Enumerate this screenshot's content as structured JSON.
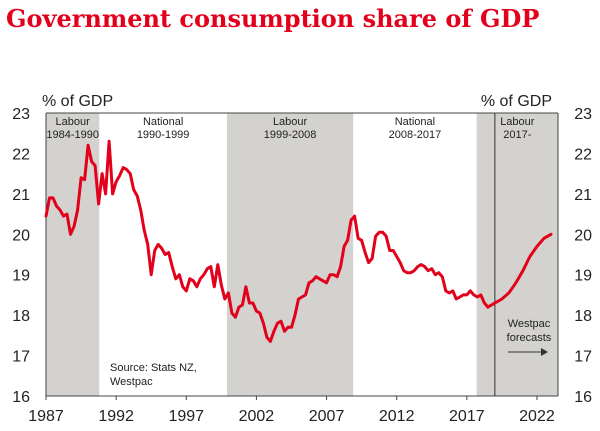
{
  "title": "Government consumption share of GDP",
  "chart_data": {
    "type": "line",
    "y_unit_left": "% of GDP",
    "y_unit_right": "% of GDP",
    "ylim": [
      16,
      23
    ],
    "y_ticks": [
      "16",
      "17",
      "18",
      "19",
      "20",
      "21",
      "22",
      "23"
    ],
    "xlim": [
      1987,
      2023.5
    ],
    "x_ticks": [
      "1987",
      "1992",
      "1997",
      "2002",
      "2007",
      "2012",
      "2017",
      "2022"
    ],
    "grid": false,
    "line_color": "#e3001b",
    "band_color": "#d4d2cf",
    "government_periods": [
      {
        "party": "Labour",
        "years": "1984-1990",
        "start": 1987.0,
        "end": 1990.8,
        "shaded": true
      },
      {
        "party": "National",
        "years": "1990-1999",
        "start": 1990.8,
        "end": 1999.9,
        "shaded": false
      },
      {
        "party": "Labour",
        "years": "1999-2008",
        "start": 1999.9,
        "end": 2008.9,
        "shaded": true
      },
      {
        "party": "National",
        "years": "2008-2017",
        "start": 2008.9,
        "end": 2017.7,
        "shaded": false
      },
      {
        "party": "Labour",
        "years": "2017-",
        "start": 2017.7,
        "end": 2023.5,
        "shaded": true
      }
    ],
    "forecast_start": 2019.0,
    "forecast_label": [
      "Westpac",
      "forecasts"
    ],
    "source": [
      "Source: Stats NZ,",
      "Westpac"
    ],
    "series": [
      {
        "values": [
          [
            1987.0,
            20.45
          ],
          [
            1987.25,
            20.9
          ],
          [
            1987.5,
            20.9
          ],
          [
            1987.75,
            20.7
          ],
          [
            1988.0,
            20.6
          ],
          [
            1988.25,
            20.45
          ],
          [
            1988.5,
            20.5
          ],
          [
            1988.75,
            20.0
          ],
          [
            1989.0,
            20.2
          ],
          [
            1989.25,
            20.6
          ],
          [
            1989.5,
            21.4
          ],
          [
            1989.75,
            21.35
          ],
          [
            1990.0,
            22.2
          ],
          [
            1990.25,
            21.8
          ],
          [
            1990.5,
            21.7
          ],
          [
            1990.75,
            20.75
          ],
          [
            1991.0,
            21.5
          ],
          [
            1991.25,
            21.0
          ],
          [
            1991.5,
            22.3
          ],
          [
            1991.75,
            21.0
          ],
          [
            1992.0,
            21.3
          ],
          [
            1992.25,
            21.45
          ],
          [
            1992.5,
            21.65
          ],
          [
            1992.75,
            21.6
          ],
          [
            1993.0,
            21.5
          ],
          [
            1993.25,
            21.1
          ],
          [
            1993.5,
            20.95
          ],
          [
            1993.75,
            20.6
          ],
          [
            1994.0,
            20.1
          ],
          [
            1994.25,
            19.75
          ],
          [
            1994.5,
            19.0
          ],
          [
            1994.75,
            19.6
          ],
          [
            1995.0,
            19.75
          ],
          [
            1995.25,
            19.65
          ],
          [
            1995.5,
            19.5
          ],
          [
            1995.75,
            19.55
          ],
          [
            1996.0,
            19.2
          ],
          [
            1996.25,
            18.9
          ],
          [
            1996.5,
            19.0
          ],
          [
            1996.75,
            18.7
          ],
          [
            1997.0,
            18.6
          ],
          [
            1997.25,
            18.9
          ],
          [
            1997.5,
            18.85
          ],
          [
            1997.75,
            18.7
          ],
          [
            1998.0,
            18.9
          ],
          [
            1998.25,
            19.0
          ],
          [
            1998.5,
            19.15
          ],
          [
            1998.75,
            19.2
          ],
          [
            1999.0,
            18.7
          ],
          [
            1999.25,
            19.25
          ],
          [
            1999.5,
            18.75
          ],
          [
            1999.75,
            18.4
          ],
          [
            2000.0,
            18.55
          ],
          [
            2000.25,
            18.05
          ],
          [
            2000.5,
            17.95
          ],
          [
            2000.75,
            18.2
          ],
          [
            2001.0,
            18.25
          ],
          [
            2001.25,
            18.7
          ],
          [
            2001.5,
            18.3
          ],
          [
            2001.75,
            18.3
          ],
          [
            2002.0,
            18.1
          ],
          [
            2002.25,
            18.05
          ],
          [
            2002.5,
            17.8
          ],
          [
            2002.75,
            17.45
          ],
          [
            2003.0,
            17.35
          ],
          [
            2003.25,
            17.6
          ],
          [
            2003.5,
            17.8
          ],
          [
            2003.75,
            17.85
          ],
          [
            2004.0,
            17.6
          ],
          [
            2004.25,
            17.7
          ],
          [
            2004.5,
            17.7
          ],
          [
            2004.75,
            18.0
          ],
          [
            2005.0,
            18.4
          ],
          [
            2005.25,
            18.45
          ],
          [
            2005.5,
            18.5
          ],
          [
            2005.75,
            18.8
          ],
          [
            2006.0,
            18.85
          ],
          [
            2006.25,
            18.95
          ],
          [
            2006.5,
            18.9
          ],
          [
            2006.75,
            18.85
          ],
          [
            2007.0,
            18.8
          ],
          [
            2007.25,
            19.0
          ],
          [
            2007.5,
            19.0
          ],
          [
            2007.75,
            18.95
          ],
          [
            2008.0,
            19.2
          ],
          [
            2008.25,
            19.7
          ],
          [
            2008.5,
            19.85
          ],
          [
            2008.75,
            20.35
          ],
          [
            2009.0,
            20.45
          ],
          [
            2009.25,
            19.9
          ],
          [
            2009.5,
            19.85
          ],
          [
            2009.75,
            19.55
          ],
          [
            2010.0,
            19.3
          ],
          [
            2010.25,
            19.4
          ],
          [
            2010.5,
            19.95
          ],
          [
            2010.75,
            20.05
          ],
          [
            2011.0,
            20.05
          ],
          [
            2011.25,
            19.95
          ],
          [
            2011.5,
            19.6
          ],
          [
            2011.75,
            19.6
          ],
          [
            2012.0,
            19.45
          ],
          [
            2012.25,
            19.3
          ],
          [
            2012.5,
            19.1
          ],
          [
            2012.75,
            19.05
          ],
          [
            2013.0,
            19.05
          ],
          [
            2013.25,
            19.1
          ],
          [
            2013.5,
            19.2
          ],
          [
            2013.75,
            19.25
          ],
          [
            2014.0,
            19.2
          ],
          [
            2014.25,
            19.1
          ],
          [
            2014.5,
            19.15
          ],
          [
            2014.75,
            19.0
          ],
          [
            2015.0,
            19.05
          ],
          [
            2015.25,
            18.95
          ],
          [
            2015.5,
            18.6
          ],
          [
            2015.75,
            18.55
          ],
          [
            2016.0,
            18.6
          ],
          [
            2016.25,
            18.4
          ],
          [
            2016.5,
            18.45
          ],
          [
            2016.75,
            18.5
          ],
          [
            2017.0,
            18.5
          ],
          [
            2017.25,
            18.6
          ],
          [
            2017.5,
            18.5
          ],
          [
            2017.75,
            18.45
          ],
          [
            2018.0,
            18.5
          ],
          [
            2018.25,
            18.3
          ],
          [
            2018.5,
            18.2
          ]
        ]
      },
      {
        "values": [
          [
            2018.5,
            18.2
          ],
          [
            2019.0,
            18.3
          ],
          [
            2019.5,
            18.4
          ],
          [
            2020.0,
            18.55
          ],
          [
            2020.5,
            18.8
          ],
          [
            2021.0,
            19.1
          ],
          [
            2021.5,
            19.45
          ],
          [
            2022.0,
            19.7
          ],
          [
            2022.5,
            19.9
          ],
          [
            2023.0,
            20.0
          ]
        ]
      }
    ]
  }
}
